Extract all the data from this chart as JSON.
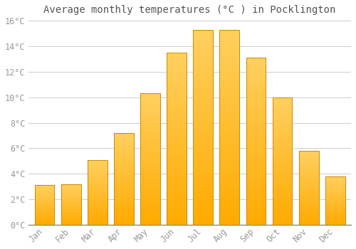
{
  "title": "Average monthly temperatures (°C ) in Pocklington",
  "months": [
    "Jan",
    "Feb",
    "Mar",
    "Apr",
    "May",
    "Jun",
    "Jul",
    "Aug",
    "Sep",
    "Oct",
    "Nov",
    "Dec"
  ],
  "values": [
    3.1,
    3.2,
    5.1,
    7.2,
    10.3,
    13.5,
    15.3,
    15.3,
    13.1,
    10.0,
    5.8,
    3.8
  ],
  "bar_color_main": "#FFAA00",
  "bar_color_light": "#FFD060",
  "bar_edge_color": "#CC8800",
  "background_color": "#FFFFFF",
  "grid_color": "#CCCCCC",
  "text_color": "#999999",
  "title_color": "#555555",
  "ylim": [
    0,
    16
  ],
  "yticks": [
    0,
    2,
    4,
    6,
    8,
    10,
    12,
    14,
    16
  ],
  "ytick_labels": [
    "0°C",
    "2°C",
    "4°C",
    "6°C",
    "8°C",
    "10°C",
    "12°C",
    "14°C",
    "16°C"
  ],
  "title_fontsize": 10,
  "tick_fontsize": 8.5,
  "font_family": "monospace",
  "bar_width": 0.75
}
